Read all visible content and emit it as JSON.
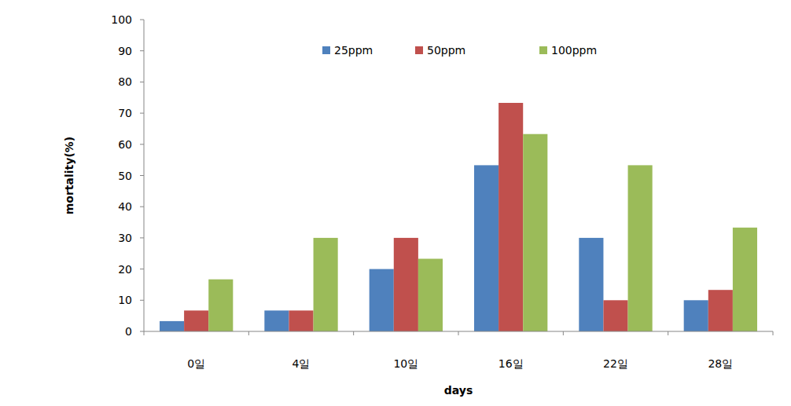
{
  "chart_data": {
    "type": "bar",
    "x_label": "days",
    "y_label": "mortality(%)",
    "categories": [
      "0일",
      "4일",
      "10일",
      "16일",
      "22일",
      "28일"
    ],
    "series": [
      {
        "name": "25ppm",
        "color": "#4f81bd",
        "values": [
          3.3,
          6.7,
          20,
          53.3,
          30,
          10
        ]
      },
      {
        "name": "50ppm",
        "color": "#c0504d",
        "values": [
          6.7,
          6.7,
          30,
          73.3,
          10,
          13.3
        ]
      },
      {
        "name": "100ppm",
        "color": "#9bbb59",
        "values": [
          16.7,
          30,
          23.3,
          63.3,
          53.3,
          33.3
        ]
      }
    ],
    "ylim": [
      0,
      100
    ],
    "yticks": [
      0,
      10,
      20,
      30,
      40,
      50,
      60,
      70,
      80,
      90,
      100
    ],
    "grid": false,
    "legend": "top"
  }
}
